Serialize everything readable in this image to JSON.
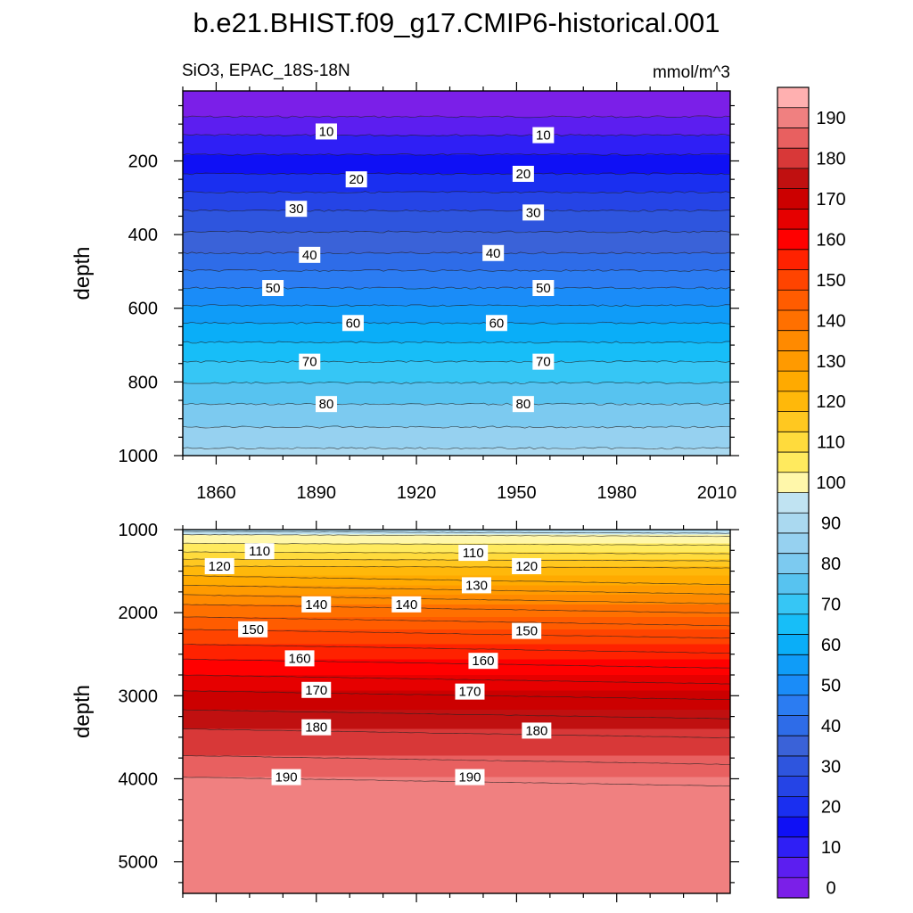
{
  "chart_data": {
    "type": "contour",
    "title": "b.e21.BHIST.f09_g17.CMIP6-historical.001",
    "subtitle_left": "SiO3, EPAC_18S-18N",
    "units": "mmol/m^3",
    "colorbar": {
      "levels": [
        0,
        5,
        10,
        15,
        20,
        25,
        30,
        35,
        40,
        45,
        50,
        55,
        60,
        65,
        70,
        75,
        80,
        85,
        90,
        95,
        100,
        105,
        110,
        115,
        120,
        125,
        130,
        135,
        140,
        145,
        150,
        155,
        160,
        165,
        170,
        175,
        180,
        185,
        190,
        195
      ],
      "tick_labels": [
        "0",
        "10",
        "20",
        "30",
        "40",
        "50",
        "60",
        "70",
        "80",
        "90",
        "100",
        "110",
        "120",
        "130",
        "140",
        "150",
        "160",
        "170",
        "180",
        "190"
      ],
      "colors": [
        "#7b1fe8",
        "#5c1ef0",
        "#2f1ff5",
        "#0f10f5",
        "#1a2ff0",
        "#2544e6",
        "#2e55de",
        "#3a62d8",
        "#2e6ce8",
        "#2b7cf2",
        "#1a8cf8",
        "#0f9cf8",
        "#0aaef8",
        "#17bef8",
        "#36c6f5",
        "#57c3f0",
        "#7ccaf0",
        "#96d1f0",
        "#aad9f0",
        "#c0e3f2",
        "#fff7aa",
        "#ffea5e",
        "#ffdb3c",
        "#ffc820",
        "#ffb80a",
        "#ffaa00",
        "#ff9a00",
        "#ff8a00",
        "#ff7000",
        "#ff5c00",
        "#ff4400",
        "#ff2200",
        "#ff0000",
        "#e60000",
        "#cc0000",
        "#c01010",
        "#d83838",
        "#e86060",
        "#f08080",
        "#ffb0b0"
      ]
    },
    "panels": [
      {
        "name": "upper",
        "ylabel": "depth",
        "x_range": [
          1850,
          2014
        ],
        "y_range": [
          10,
          1000
        ],
        "x_ticks": [
          1860,
          1890,
          1920,
          1950,
          1980,
          2010
        ],
        "y_ticks": [
          200,
          400,
          600,
          800,
          1000
        ],
        "contour_labels": [
          {
            "text": "10",
            "year": 1893,
            "depth": 120
          },
          {
            "text": "10",
            "year": 1958,
            "depth": 130
          },
          {
            "text": "20",
            "year": 1902,
            "depth": 250
          },
          {
            "text": "20",
            "year": 1952,
            "depth": 235
          },
          {
            "text": "30",
            "year": 1884,
            "depth": 330
          },
          {
            "text": "30",
            "year": 1955,
            "depth": 340
          },
          {
            "text": "40",
            "year": 1888,
            "depth": 455
          },
          {
            "text": "40",
            "year": 1943,
            "depth": 450
          },
          {
            "text": "50",
            "year": 1877,
            "depth": 545
          },
          {
            "text": "50",
            "year": 1958,
            "depth": 545
          },
          {
            "text": "60",
            "year": 1901,
            "depth": 640
          },
          {
            "text": "60",
            "year": 1944,
            "depth": 640
          },
          {
            "text": "70",
            "year": 1888,
            "depth": 745
          },
          {
            "text": "70",
            "year": 1958,
            "depth": 745
          },
          {
            "text": "80",
            "year": 1893,
            "depth": 860
          },
          {
            "text": "80",
            "year": 1952,
            "depth": 860
          }
        ]
      },
      {
        "name": "lower",
        "ylabel": "depth",
        "x_range": [
          1850,
          2014
        ],
        "y_range": [
          1000,
          5380
        ],
        "x_ticks": [
          1860,
          1890,
          1920,
          1950,
          1980,
          2010
        ],
        "y_ticks": [
          1000,
          2000,
          3000,
          4000,
          5000
        ],
        "contour_labels": [
          {
            "text": "110",
            "year": 1873,
            "depth": 1260
          },
          {
            "text": "110",
            "year": 1937,
            "depth": 1280
          },
          {
            "text": "120",
            "year": 1861,
            "depth": 1440
          },
          {
            "text": "120",
            "year": 1953,
            "depth": 1440
          },
          {
            "text": "130",
            "year": 1938,
            "depth": 1670
          },
          {
            "text": "140",
            "year": 1890,
            "depth": 1900
          },
          {
            "text": "140",
            "year": 1917,
            "depth": 1900
          },
          {
            "text": "150",
            "year": 1871,
            "depth": 2200
          },
          {
            "text": "150",
            "year": 1953,
            "depth": 2220
          },
          {
            "text": "160",
            "year": 1885,
            "depth": 2550
          },
          {
            "text": "160",
            "year": 1940,
            "depth": 2580
          },
          {
            "text": "170",
            "year": 1890,
            "depth": 2930
          },
          {
            "text": "170",
            "year": 1936,
            "depth": 2950
          },
          {
            "text": "180",
            "year": 1890,
            "depth": 3380
          },
          {
            "text": "180",
            "year": 1956,
            "depth": 3420
          },
          {
            "text": "190",
            "year": 1881,
            "depth": 3980
          },
          {
            "text": "190",
            "year": 1936,
            "depth": 3980
          }
        ]
      }
    ]
  }
}
